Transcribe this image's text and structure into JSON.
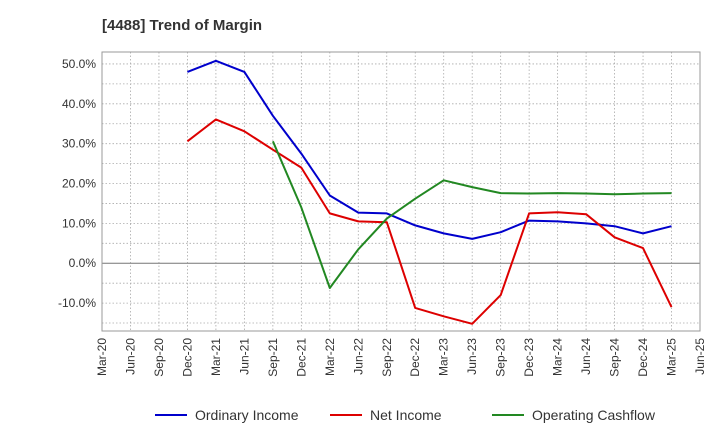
{
  "chart_data": {
    "type": "line",
    "title": "[4488]  Trend of Margin",
    "xlabel": "",
    "ylabel": "",
    "x_ticks": [
      "Mar-20",
      "Jun-20",
      "Sep-20",
      "Dec-20",
      "Mar-21",
      "Jun-21",
      "Sep-21",
      "Dec-21",
      "Mar-22",
      "Jun-22",
      "Sep-22",
      "Dec-22",
      "Mar-23",
      "Jun-23",
      "Sep-23",
      "Dec-23",
      "Mar-24",
      "Jun-24",
      "Sep-24",
      "Dec-24",
      "Mar-25",
      "Jun-25"
    ],
    "ylim": [
      -17,
      53
    ],
    "y_ticks": [
      -10,
      0,
      10,
      20,
      30,
      40,
      50
    ],
    "y_tick_labels": [
      "-10.0%",
      "0.0%",
      "10.0%",
      "20.0%",
      "30.0%",
      "40.0%",
      "50.0%"
    ],
    "grid": true,
    "legend_position": "bottom",
    "series": [
      {
        "name": "Ordinary Income",
        "color": "#0000cc",
        "points": [
          [
            "Dec-20",
            48.0
          ],
          [
            "Mar-21",
            50.8
          ],
          [
            "Jun-21",
            48.0
          ],
          [
            "Sep-21",
            37.0
          ],
          [
            "Dec-21",
            27.5
          ],
          [
            "Mar-22",
            17.0
          ],
          [
            "Jun-22",
            12.7
          ],
          [
            "Sep-22",
            12.5
          ],
          [
            "Dec-22",
            9.5
          ],
          [
            "Mar-23",
            7.5
          ],
          [
            "Jun-23",
            6.1
          ],
          [
            "Sep-23",
            7.8
          ],
          [
            "Dec-23",
            10.7
          ],
          [
            "Mar-24",
            10.5
          ],
          [
            "Jun-24",
            10.0
          ],
          [
            "Sep-24",
            9.3
          ],
          [
            "Dec-24",
            7.5
          ],
          [
            "Mar-25",
            9.3
          ]
        ]
      },
      {
        "name": "Net Income",
        "color": "#dd0000",
        "points": [
          [
            "Dec-20",
            30.6
          ],
          [
            "Mar-21",
            36.1
          ],
          [
            "Jun-21",
            33.1
          ],
          [
            "Sep-21",
            28.5
          ],
          [
            "Dec-21",
            24.0
          ],
          [
            "Mar-22",
            12.5
          ],
          [
            "Jun-22",
            10.5
          ],
          [
            "Sep-22",
            10.3
          ],
          [
            "Dec-22",
            -11.2
          ],
          [
            "Mar-23",
            -13.3
          ],
          [
            "Jun-23",
            -15.2
          ],
          [
            "Sep-23",
            -8.0
          ],
          [
            "Dec-23",
            12.5
          ],
          [
            "Mar-24",
            12.8
          ],
          [
            "Jun-24",
            12.3
          ],
          [
            "Sep-24",
            6.5
          ],
          [
            "Dec-24",
            3.8
          ],
          [
            "Mar-25",
            -11.0
          ]
        ]
      },
      {
        "name": "Operating Cashflow",
        "color": "#228822",
        "points": [
          [
            "Sep-21",
            30.6
          ],
          [
            "Dec-21",
            14.0
          ],
          [
            "Mar-22",
            -6.2
          ],
          [
            "Jun-22",
            3.5
          ],
          [
            "Sep-22",
            11.2
          ],
          [
            "Dec-22",
            16.2
          ],
          [
            "Mar-23",
            20.8
          ],
          [
            "Jun-23",
            19.1
          ],
          [
            "Sep-23",
            17.6
          ],
          [
            "Dec-23",
            17.5
          ],
          [
            "Mar-24",
            17.6
          ],
          [
            "Jun-24",
            17.5
          ],
          [
            "Sep-24",
            17.3
          ],
          [
            "Dec-24",
            17.5
          ],
          [
            "Mar-25",
            17.6
          ]
        ]
      }
    ]
  }
}
